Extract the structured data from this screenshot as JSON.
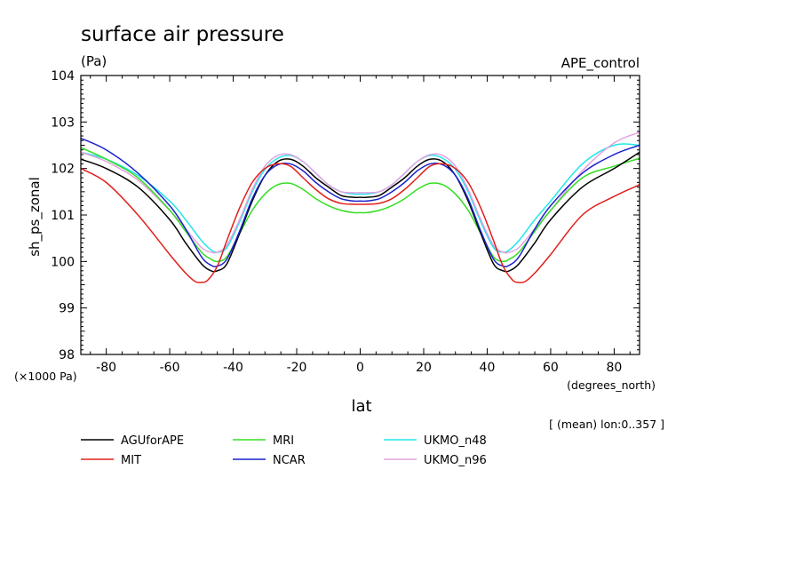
{
  "header": {
    "title": "surface air pressure",
    "units": "(Pa)",
    "experiment": "APE_control"
  },
  "footer": {
    "mean_note": "[ (mean) lon:0..357 ]",
    "y_scale_note": "(×1000 Pa)",
    "x_units_note": "(degrees_north)"
  },
  "chart_data": {
    "type": "line",
    "title": "surface air pressure",
    "xlabel": "lat",
    "ylabel": "sh_ps_zonal",
    "xlim": [
      -88,
      88
    ],
    "ylim": [
      98,
      104
    ],
    "xticks": [
      -80,
      -60,
      -40,
      -20,
      0,
      20,
      40,
      60,
      80
    ],
    "yticks": [
      98,
      99,
      100,
      101,
      102,
      103,
      104
    ],
    "legend_position": "bottom",
    "series": [
      {
        "name": "AGUforAPE",
        "color": "#000000",
        "x": [
          -88,
          -80,
          -70,
          -60,
          -55,
          -50,
          -47,
          -45,
          -42,
          -38,
          -34,
          -30,
          -26,
          -22,
          -18,
          -14,
          -10,
          -6,
          -2,
          0,
          2,
          6,
          10,
          14,
          18,
          22,
          26,
          30,
          34,
          38,
          42,
          45,
          47,
          50,
          55,
          60,
          70,
          80,
          88
        ],
        "y": [
          102.2,
          102.0,
          101.6,
          100.9,
          100.4,
          99.95,
          99.8,
          99.8,
          99.95,
          100.6,
          101.3,
          101.85,
          102.15,
          102.2,
          102.05,
          101.8,
          101.6,
          101.42,
          101.38,
          101.38,
          101.38,
          101.42,
          101.6,
          101.8,
          102.05,
          102.2,
          102.15,
          101.85,
          101.3,
          100.6,
          99.95,
          99.8,
          99.8,
          99.95,
          100.4,
          100.9,
          101.6,
          102.0,
          102.35
        ]
      },
      {
        "name": "MIT",
        "color": "#e0201b",
        "x": [
          -88,
          -80,
          -70,
          -60,
          -55,
          -52,
          -50,
          -48,
          -45,
          -42,
          -38,
          -34,
          -30,
          -26,
          -22,
          -18,
          -14,
          -10,
          -6,
          -2,
          0,
          2,
          6,
          10,
          14,
          18,
          22,
          26,
          30,
          34,
          38,
          42,
          45,
          48,
          50,
          52,
          55,
          60,
          70,
          80,
          88
        ],
        "y": [
          102.0,
          101.7,
          101.0,
          100.15,
          99.75,
          99.57,
          99.55,
          99.6,
          99.9,
          100.45,
          101.15,
          101.7,
          102.0,
          102.1,
          102.05,
          101.8,
          101.55,
          101.35,
          101.25,
          101.23,
          101.23,
          101.23,
          101.25,
          101.35,
          101.55,
          101.8,
          102.05,
          102.1,
          102.0,
          101.7,
          101.15,
          100.45,
          99.9,
          99.6,
          99.55,
          99.57,
          99.75,
          100.15,
          101.0,
          101.4,
          101.65
        ]
      },
      {
        "name": "MRI",
        "color": "#33dd22",
        "x": [
          -88,
          -80,
          -70,
          -60,
          -55,
          -50,
          -47,
          -45,
          -42,
          -38,
          -34,
          -30,
          -26,
          -22,
          -18,
          -14,
          -10,
          -6,
          -2,
          0,
          2,
          6,
          10,
          14,
          18,
          22,
          26,
          30,
          34,
          38,
          42,
          45,
          47,
          50,
          55,
          60,
          70,
          80,
          88
        ],
        "y": [
          102.45,
          102.2,
          101.8,
          101.1,
          100.65,
          100.2,
          100.05,
          100.0,
          100.1,
          100.6,
          101.1,
          101.45,
          101.65,
          101.68,
          101.55,
          101.35,
          101.2,
          101.1,
          101.05,
          101.05,
          101.05,
          101.1,
          101.2,
          101.35,
          101.55,
          101.68,
          101.65,
          101.45,
          101.1,
          100.6,
          100.1,
          100.0,
          100.05,
          100.2,
          100.65,
          101.1,
          101.8,
          102.05,
          102.22
        ]
      },
      {
        "name": "NCAR",
        "color": "#1a22cc",
        "x": [
          -88,
          -80,
          -70,
          -60,
          -55,
          -50,
          -47,
          -45,
          -42,
          -38,
          -34,
          -30,
          -26,
          -22,
          -18,
          -14,
          -10,
          -6,
          -2,
          0,
          2,
          6,
          10,
          14,
          18,
          22,
          26,
          30,
          34,
          38,
          42,
          45,
          47,
          50,
          55,
          60,
          70,
          80,
          88
        ],
        "y": [
          102.65,
          102.4,
          101.9,
          101.2,
          100.7,
          100.1,
          99.92,
          99.9,
          100.05,
          100.65,
          101.35,
          101.85,
          102.08,
          102.1,
          101.95,
          101.7,
          101.5,
          101.35,
          101.3,
          101.3,
          101.3,
          101.35,
          101.5,
          101.7,
          101.95,
          102.1,
          102.08,
          101.85,
          101.35,
          100.65,
          100.05,
          99.9,
          99.92,
          100.1,
          100.7,
          101.2,
          101.9,
          102.3,
          102.5
        ]
      },
      {
        "name": "UKMO_n48",
        "color": "#22e6ea",
        "x": [
          -88,
          -80,
          -70,
          -60,
          -55,
          -50,
          -47,
          -45,
          -42,
          -38,
          -34,
          -30,
          -26,
          -22,
          -18,
          -14,
          -10,
          -6,
          -2,
          0,
          2,
          6,
          10,
          14,
          18,
          22,
          26,
          30,
          34,
          38,
          42,
          45,
          47,
          50,
          55,
          60,
          70,
          80,
          88
        ],
        "y": [
          102.35,
          102.2,
          101.85,
          101.3,
          100.9,
          100.45,
          100.25,
          100.2,
          100.3,
          100.85,
          101.5,
          101.98,
          102.22,
          102.28,
          102.15,
          101.9,
          101.65,
          101.5,
          101.45,
          101.45,
          101.45,
          101.5,
          101.65,
          101.9,
          102.15,
          102.28,
          102.22,
          101.98,
          101.5,
          100.85,
          100.3,
          100.2,
          100.25,
          100.45,
          100.9,
          101.3,
          102.1,
          102.5,
          102.5
        ]
      },
      {
        "name": "UKMO_n96",
        "color": "#e4a2e0",
        "x": [
          -88,
          -80,
          -70,
          -60,
          -55,
          -50,
          -47,
          -45,
          -42,
          -38,
          -34,
          -30,
          -26,
          -22,
          -18,
          -14,
          -10,
          -6,
          -2,
          0,
          2,
          6,
          10,
          14,
          18,
          22,
          26,
          30,
          34,
          38,
          42,
          45,
          47,
          50,
          55,
          60,
          70,
          80,
          88
        ],
        "y": [
          102.35,
          102.15,
          101.75,
          101.1,
          100.7,
          100.3,
          100.2,
          100.2,
          100.35,
          100.9,
          101.55,
          102.05,
          102.28,
          102.3,
          102.15,
          101.9,
          101.65,
          101.5,
          101.48,
          101.48,
          101.48,
          101.5,
          101.65,
          101.9,
          102.15,
          102.3,
          102.28,
          102.05,
          101.55,
          100.9,
          100.35,
          100.2,
          100.2,
          100.3,
          100.7,
          101.1,
          101.95,
          102.55,
          102.78
        ]
      }
    ]
  }
}
